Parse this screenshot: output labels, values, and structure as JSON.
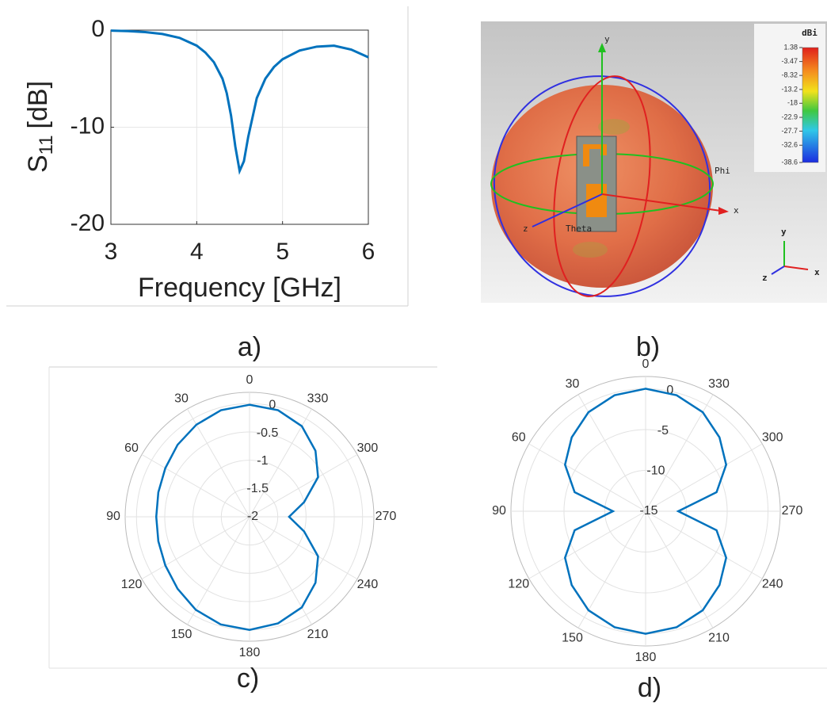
{
  "chart_data": [
    {
      "type": "line",
      "panel_label": "a)",
      "xlabel": "Frequency [GHz]",
      "ylabel_main": "S",
      "ylabel_subscript": "11",
      "ylabel_suffix": "[dB]",
      "x": [
        3,
        3.2,
        3.4,
        3.6,
        3.8,
        4,
        4.1,
        4.2,
        4.3,
        4.35,
        4.4,
        4.45,
        4.5,
        4.55,
        4.6,
        4.7,
        4.8,
        4.9,
        5,
        5.2,
        5.4,
        5.6,
        5.8,
        6
      ],
      "series": [
        {
          "color": "#0072bd",
          "values": [
            -0.05,
            -0.1,
            -0.2,
            -0.4,
            -0.8,
            -1.6,
            -2.3,
            -3.3,
            -5,
            -6.5,
            -8.8,
            -12,
            -14.5,
            -13.5,
            -11,
            -7,
            -5,
            -3.8,
            -3,
            -2.1,
            -1.7,
            -1.6,
            -2,
            -2.8
          ]
        }
      ],
      "xlim": [
        3,
        6
      ],
      "xticks": [
        3,
        4,
        5,
        6
      ],
      "ylim": [
        -20,
        0
      ],
      "yticks": [
        -20,
        -10,
        0
      ],
      "grid": true
    },
    {
      "type": "polar",
      "panel_label": "c)",
      "angles": [
        0,
        15,
        30,
        45,
        60,
        75,
        90,
        105,
        120,
        135,
        150,
        165,
        180,
        195,
        210,
        225,
        240,
        255,
        270,
        285,
        300,
        315,
        330,
        345
      ],
      "series": [
        {
          "color": "#0072bd",
          "values": [
            -0.02,
            -0.05,
            -0.12,
            -0.2,
            -0.28,
            -0.33,
            -0.35,
            -0.33,
            -0.28,
            -0.2,
            -0.1,
            -0.03,
            0,
            -0.05,
            -0.15,
            -0.35,
            -0.6,
            -1.0,
            -1.3,
            -1.0,
            -0.6,
            -0.35,
            -0.15,
            -0.05
          ]
        }
      ],
      "rlim": [
        -2,
        0.2
      ],
      "rticks": [
        0,
        -0.5,
        -1,
        -1.5,
        -2
      ],
      "angleticks": [
        0,
        30,
        60,
        90,
        120,
        150,
        180,
        210,
        240,
        270,
        300,
        330
      ],
      "grid": true
    },
    {
      "type": "polar",
      "panel_label": "d)",
      "angles": [
        0,
        15,
        30,
        45,
        60,
        75,
        90,
        105,
        120,
        135,
        150,
        165,
        180,
        195,
        210,
        225,
        240,
        255,
        270,
        285,
        300,
        315,
        330,
        345
      ],
      "series": [
        {
          "color": "#0072bd",
          "values": [
            0,
            -0.3,
            -1,
            -2.2,
            -3.6,
            -6,
            -11,
            -6,
            -3.6,
            -2.2,
            -1,
            -0.3,
            0,
            -0.3,
            -1,
            -2.2,
            -3.6,
            -6,
            -11,
            -6,
            -3.6,
            -2.2,
            -1,
            -0.3
          ]
        }
      ],
      "rlim": [
        -15,
        1.5
      ],
      "rticks": [
        0,
        -5,
        -10,
        -15
      ],
      "angleticks": [
        0,
        30,
        60,
        90,
        120,
        150,
        180,
        210,
        240,
        270,
        300,
        330
      ],
      "grid": true
    }
  ],
  "pattern_3d": {
    "panel_label": "b)",
    "colorbar_label": "dBi",
    "colorbar_ticks": [
      1.38,
      -3.47,
      -8.32,
      -13.2,
      -18,
      -22.9,
      -27.7,
      -32.6,
      -38.6
    ],
    "axis_x": "x",
    "axis_y": "y",
    "axis_z": "z",
    "phi": "Phi",
    "theta": "Theta",
    "triad_x": "x",
    "triad_y": "y",
    "triad_z": "z"
  }
}
